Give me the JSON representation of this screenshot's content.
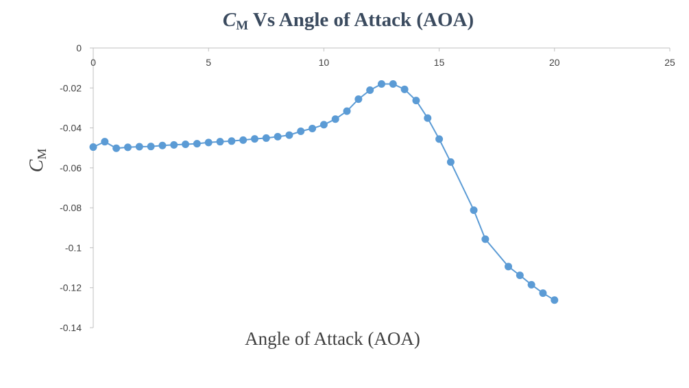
{
  "chart_data": {
    "type": "line",
    "title": {
      "symbol": "C",
      "subscript": "M",
      "rest": " Vs Angle of Attack (AOA)"
    },
    "xlabel": "Angle of Attack (AOA)",
    "ylabel": {
      "symbol": "C",
      "subscript": "M"
    },
    "xlim": [
      0,
      25
    ],
    "ylim": [
      -0.14,
      0
    ],
    "x_ticks": [
      0,
      5,
      10,
      15,
      20,
      25
    ],
    "y_ticks": [
      0,
      -0.02,
      -0.04,
      -0.06,
      -0.08,
      -0.1,
      -0.12,
      -0.14
    ],
    "x_tick_labels": [
      "0",
      "5",
      "10",
      "15",
      "20",
      "25"
    ],
    "y_tick_labels": [
      "0",
      "-0.02",
      "-0.04",
      "-0.06",
      "-0.08",
      "-0.1",
      "-0.12",
      "-0.14"
    ],
    "grid": false,
    "legend": "none",
    "series": [
      {
        "color": "#5b9bd5",
        "x": [
          0,
          0.5,
          1,
          1.5,
          2,
          2.5,
          3,
          3.5,
          4,
          4.5,
          5,
          5.5,
          6,
          6.5,
          7,
          7.5,
          8,
          8.5,
          9,
          9.5,
          10,
          10.5,
          11,
          11.5,
          12,
          12.5,
          13,
          13.5,
          14,
          14.5,
          15,
          15.5,
          16.5,
          17,
          18,
          18.5,
          19,
          19.5,
          20
        ],
        "y": [
          -0.0496,
          -0.0469,
          -0.0502,
          -0.0497,
          -0.0494,
          -0.0493,
          -0.0488,
          -0.0485,
          -0.0482,
          -0.0479,
          -0.0473,
          -0.0469,
          -0.0466,
          -0.0461,
          -0.0455,
          -0.0451,
          -0.0444,
          -0.0436,
          -0.0417,
          -0.0403,
          -0.0384,
          -0.0356,
          -0.0316,
          -0.0256,
          -0.0211,
          -0.018,
          -0.018,
          -0.0207,
          -0.0263,
          -0.0351,
          -0.0456,
          -0.0571,
          -0.0812,
          -0.0957,
          -0.1094,
          -0.1138,
          -0.1185,
          -0.1227,
          -0.1262
        ]
      }
    ]
  }
}
